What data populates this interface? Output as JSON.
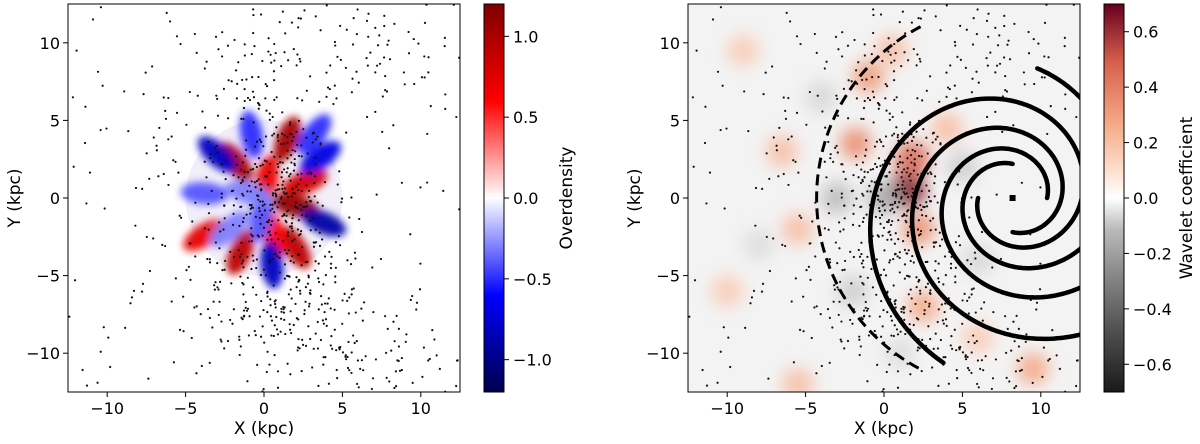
{
  "chart_data": [
    {
      "type": "heatmap",
      "xlabel": "X (kpc)",
      "ylabel": "Y (kpc)",
      "xlim": [
        -12.5,
        12.5
      ],
      "ylim": [
        -12.5,
        12.5
      ],
      "xticks": [
        -10,
        -5,
        0,
        5,
        10
      ],
      "yticks": [
        -10,
        -5,
        0,
        5,
        10
      ],
      "colorbar": {
        "label": "Overdensity",
        "colormap": "seismic",
        "range": [
          -1.2,
          1.2
        ],
        "ticks": [
          -1.0,
          -0.5,
          0.0,
          0.5,
          1.0
        ],
        "tick_labels": [
          "−1.0",
          "−0.5",
          "0.0",
          "0.5",
          "1.0"
        ]
      },
      "overlay": "black dots: tracer sources",
      "colored_region": {
        "center": [
          0,
          0
        ],
        "radius": 5
      },
      "blobs": [
        {
          "x": -1.8,
          "y": 2.3,
          "value": 1.0
        },
        {
          "x": 1.5,
          "y": 3.8,
          "value": 1.0
        },
        {
          "x": 0.2,
          "y": 1.2,
          "value": 0.7
        },
        {
          "x": 2.0,
          "y": -0.5,
          "value": 1.1
        },
        {
          "x": 2.6,
          "y": 1.0,
          "value": 0.8
        },
        {
          "x": -1.5,
          "y": -3.5,
          "value": 0.9
        },
        {
          "x": 2.0,
          "y": -3.2,
          "value": 0.9
        },
        {
          "x": -3.8,
          "y": -2.4,
          "value": 0.7
        },
        {
          "x": 0.6,
          "y": -2.3,
          "value": 0.6
        },
        {
          "x": -3.0,
          "y": 2.8,
          "value": -0.8
        },
        {
          "x": -0.2,
          "y": -1.3,
          "value": -0.4
        },
        {
          "x": 3.8,
          "y": -1.6,
          "value": -0.9
        },
        {
          "x": 3.6,
          "y": 2.6,
          "value": -0.7
        },
        {
          "x": -3.8,
          "y": 0.3,
          "value": -0.4
        },
        {
          "x": 0.5,
          "y": -4.3,
          "value": -0.8
        },
        {
          "x": -0.8,
          "y": 4.1,
          "value": -0.5
        },
        {
          "x": -1.0,
          "y": 0.3,
          "value": -0.3
        },
        {
          "x": 3.2,
          "y": 4.1,
          "value": -0.5
        },
        {
          "x": -2.2,
          "y": -2.0,
          "value": -0.3
        }
      ]
    },
    {
      "type": "heatmap",
      "xlabel": "X (kpc)",
      "ylabel": "Y (kpc)",
      "xlim": [
        -12.5,
        12.5
      ],
      "ylim": [
        -12.5,
        12.5
      ],
      "xticks": [
        -10,
        -5,
        0,
        5,
        10
      ],
      "yticks": [
        -10,
        -5,
        0,
        5,
        10
      ],
      "colorbar": {
        "label": "Wavelet coefficient",
        "colormap": "RdGy_r",
        "range": [
          -0.7,
          0.7
        ],
        "ticks": [
          -0.6,
          -0.4,
          -0.2,
          0.0,
          0.2,
          0.4,
          0.6
        ],
        "tick_labels": [
          "−0.6",
          "−0.4",
          "−0.2",
          "0.0",
          "0.2",
          "0.4",
          "0.6"
        ]
      },
      "overlay": "black dots: tracer sources; black curves: spiral arm model; dashed arc at R about 12.5 kpc",
      "sun_marker": {
        "x": 8.2,
        "y": 0
      },
      "spiral_model": {
        "center": [
          8.2,
          0
        ],
        "arms": 4,
        "pitch_angle_deg": 12.5
      },
      "blobs": [
        {
          "x": 1.5,
          "y": 0.5,
          "value": 0.65
        },
        {
          "x": 1.8,
          "y": 2.5,
          "value": 0.45
        },
        {
          "x": 2.2,
          "y": -2.0,
          "value": 0.3
        },
        {
          "x": -1.8,
          "y": 3.5,
          "value": 0.3
        },
        {
          "x": -1.0,
          "y": 7.8,
          "value": 0.25
        },
        {
          "x": 2.5,
          "y": -7.0,
          "value": 0.2
        },
        {
          "x": -5.5,
          "y": -2.0,
          "value": 0.15
        },
        {
          "x": -6.5,
          "y": 3.0,
          "value": 0.15
        },
        {
          "x": 0.5,
          "y": 9.5,
          "value": 0.15
        },
        {
          "x": -5.5,
          "y": -12.0,
          "value": 0.15
        },
        {
          "x": 9.5,
          "y": -11.0,
          "value": 0.2
        },
        {
          "x": 4.0,
          "y": 4.5,
          "value": 0.15
        },
        {
          "x": -9.0,
          "y": 9.5,
          "value": 0.12
        },
        {
          "x": -10.0,
          "y": -6.0,
          "value": 0.12
        },
        {
          "x": 6.0,
          "y": -9.0,
          "value": 0.12
        },
        {
          "x": 0.0,
          "y": 0.0,
          "value": -0.25
        },
        {
          "x": -3.0,
          "y": 0.0,
          "value": -0.2
        },
        {
          "x": 5.0,
          "y": 2.0,
          "value": -0.15
        },
        {
          "x": -4.0,
          "y": 6.5,
          "value": -0.12
        },
        {
          "x": 6.0,
          "y": -4.0,
          "value": -0.12
        },
        {
          "x": -8.0,
          "y": -3.0,
          "value": -0.1
        },
        {
          "x": 1.0,
          "y": -10.0,
          "value": -0.1
        },
        {
          "x": -2.0,
          "y": -6.0,
          "value": -0.15
        }
      ]
    }
  ]
}
